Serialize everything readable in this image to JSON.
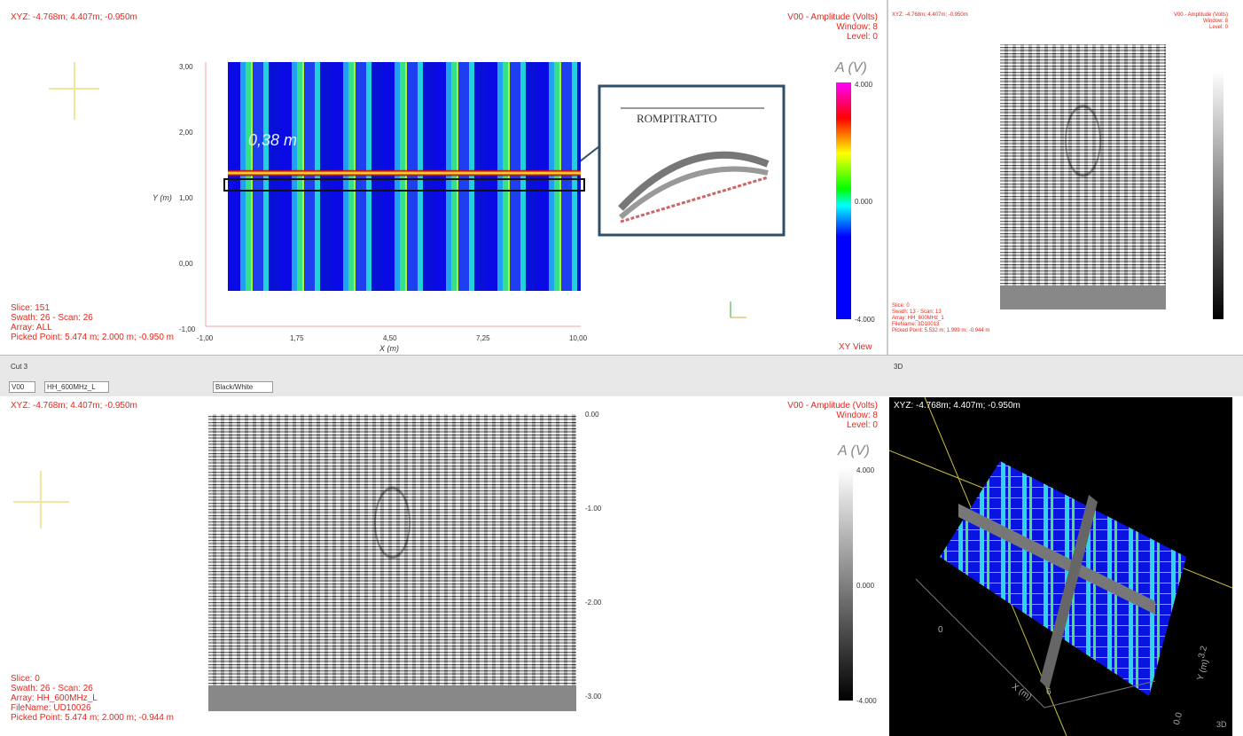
{
  "top_left": {
    "xyz": "XYZ: -4.768m; 4.407m; -0.950m",
    "legend_title": "V00 - Amplitude (Volts)",
    "window": "Window: 8",
    "level": "Level: 0",
    "y_label": "Y (m)",
    "x_label": "X (m)",
    "y_ticks": [
      "3,00",
      "2,00",
      "1,00",
      "0,00",
      "-1,00"
    ],
    "x_ticks": [
      "-1,00",
      "1,75",
      "4,50",
      "7,25",
      "10,00"
    ],
    "annotation": "0,38 m",
    "inset_title": "ROMPITRATTO",
    "colorbar_title": "A (V)",
    "colorbar_ticks": [
      "4.000",
      "0.000",
      "-4.000"
    ],
    "info": [
      "Slice: 151",
      "Swath: 26 - Scan: 26",
      "Array: ALL",
      "Picked Point: 5.474 m; 2.000 m; -0.950 m"
    ],
    "view_label": "XY View"
  },
  "top_right": {
    "xyz": "XYZ: -4.768m; 4.407m; -0.950m",
    "legend_title": "V00 - Amplitude (Volts)",
    "window": "Window: 8",
    "level": "Level: 0",
    "info": [
      "Slice: 0",
      "Swath: 13 - Scan: 13",
      "Array: HH_600MHz_1",
      "FileName: 3D10013",
      "Picked Point: 5.532 m; 1.999 m; -0.944 m"
    ]
  },
  "toolbar": {
    "panel_title": "Cut 3",
    "channel": "V00",
    "array": "HH_600MHz_L",
    "palette": "Black/White",
    "panel_3d_title": "3D"
  },
  "bottom_left": {
    "xyz": "XYZ: -4.768m; 4.407m; -0.950m",
    "legend_title": "V00 - Amplitude (Volts)",
    "window": "Window: 8",
    "level": "Level: 0",
    "depth_ticks": [
      "0.00",
      "-1.00",
      "-2.00",
      "-3.00"
    ],
    "colorbar_title": "A (V)",
    "colorbar_ticks": [
      "4.000",
      "0.000",
      "-4.000"
    ],
    "info": [
      "Slice: 0",
      "Swath: 26 - Scan: 26",
      "Array: HH_600MHz_L",
      "FileName: UD10026",
      "Picked Point: 5.474 m; 2.000 m; -0.944 m"
    ]
  },
  "bottom_right": {
    "xyz": "XYZ: -4.768m; 4.407m; -0.950m",
    "x_label": "X (m)",
    "y_label": "Y (m)",
    "x_ticks": [
      "0",
      "6"
    ],
    "y_ticks": [
      "3.2",
      "0.0"
    ],
    "view_label": "3D"
  }
}
